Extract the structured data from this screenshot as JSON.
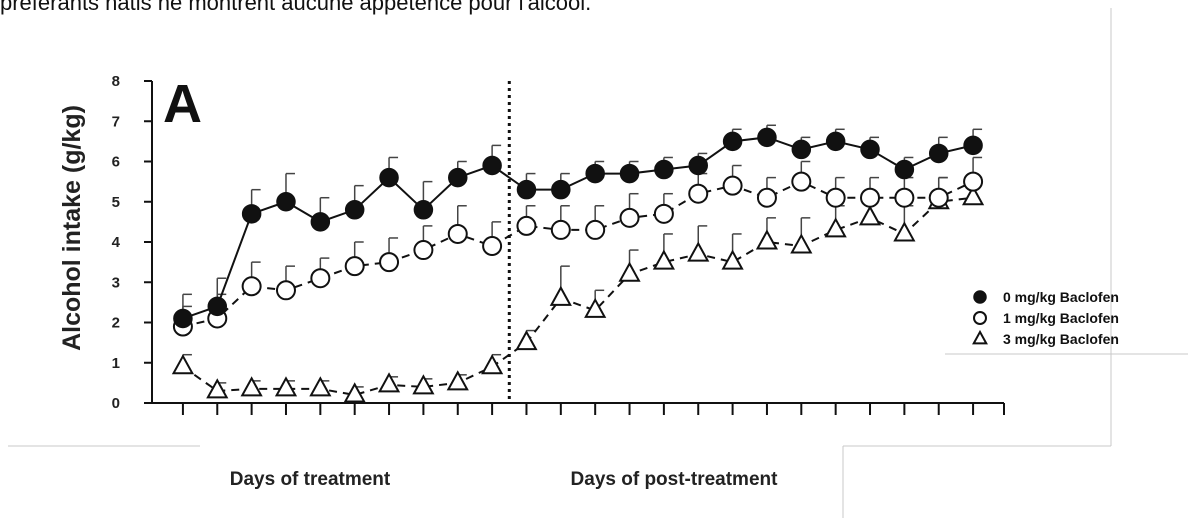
{
  "caption": "préférants natis ne montrent aucune appétence pour l'alcool.",
  "chart_data": {
    "type": "line",
    "panel_label": "A",
    "ylabel": "Alcohol intake (g/kg)",
    "ylim": [
      0,
      8
    ],
    "yticks": [
      "0",
      "1",
      "2",
      "3",
      "4",
      "5",
      "6",
      "7",
      "8"
    ],
    "x": [
      1,
      2,
      3,
      4,
      5,
      6,
      7,
      8,
      9,
      10,
      11,
      12,
      13,
      14,
      15,
      16,
      17,
      18,
      19,
      20,
      21,
      22,
      23,
      24
    ],
    "xlim": [
      0.1,
      24.9
    ],
    "treatment_end_x": 10.5,
    "period_labels": [
      "Days of treatment",
      "Days of post-treatment"
    ],
    "grid": false,
    "legend_position": "right",
    "series": [
      {
        "name": "0 mg/kg Baclofen",
        "marker": "filled-circle",
        "color": "#000000",
        "values": [
          2.1,
          2.4,
          4.7,
          5.0,
          4.5,
          4.8,
          5.6,
          4.8,
          5.6,
          5.9,
          5.3,
          5.3,
          5.7,
          5.7,
          5.8,
          5.9,
          6.5,
          6.6,
          6.3,
          6.5,
          6.3,
          5.8,
          6.2,
          6.4
        ],
        "errors": [
          0.6,
          0.7,
          0.6,
          0.7,
          0.6,
          0.6,
          0.5,
          0.7,
          0.4,
          0.5,
          0.4,
          0.4,
          0.3,
          0.3,
          0.3,
          0.3,
          0.3,
          0.3,
          0.3,
          0.3,
          0.3,
          0.3,
          0.4,
          0.4
        ]
      },
      {
        "name": "1 mg/kg Baclofen",
        "marker": "open-circle",
        "color": "#000000",
        "values": [
          1.9,
          2.1,
          2.9,
          2.8,
          3.1,
          3.4,
          3.5,
          3.8,
          4.2,
          3.9,
          4.4,
          4.3,
          4.3,
          4.6,
          4.7,
          5.2,
          5.4,
          5.1,
          5.5,
          5.1,
          5.1,
          5.1,
          5.1,
          5.5
        ],
        "errors": [
          0.5,
          0.6,
          0.6,
          0.6,
          0.5,
          0.6,
          0.6,
          0.6,
          0.7,
          0.6,
          0.5,
          0.6,
          0.6,
          0.6,
          0.5,
          0.5,
          0.5,
          0.5,
          0.5,
          0.5,
          0.5,
          0.5,
          0.5,
          0.6
        ]
      },
      {
        "name": "3 mg/kg Baclofen",
        "marker": "open-triangle",
        "color": "#000000",
        "values": [
          0.9,
          0.3,
          0.35,
          0.35,
          0.35,
          0.2,
          0.45,
          0.4,
          0.5,
          0.9,
          1.5,
          2.6,
          2.3,
          3.2,
          3.5,
          3.7,
          3.5,
          4.0,
          3.9,
          4.3,
          4.6,
          4.2,
          5.0,
          5.1
        ],
        "errors": [
          0.3,
          0.2,
          0.2,
          0.2,
          0.2,
          0.2,
          0.2,
          0.2,
          0.2,
          0.3,
          0.3,
          0.8,
          0.5,
          0.6,
          0.7,
          0.7,
          0.7,
          0.6,
          0.7,
          0.6,
          0.6,
          0.7,
          0.6,
          0.5
        ]
      }
    ]
  }
}
